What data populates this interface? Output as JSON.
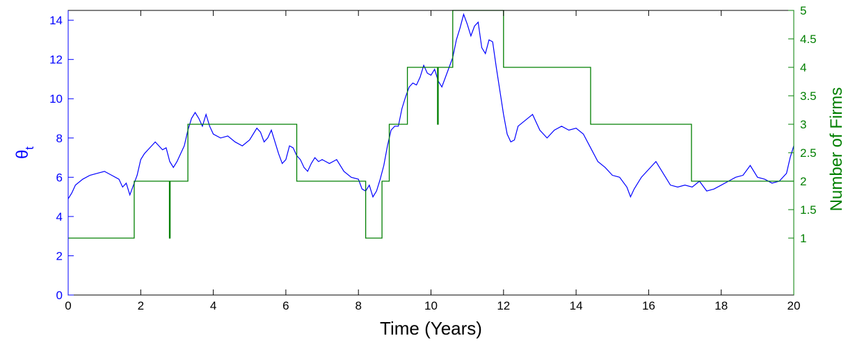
{
  "chart_data": {
    "type": "line",
    "xlabel": "Time (Years)",
    "ylabel_left": {
      "base": "θ",
      "sub": "t"
    },
    "ylabel_right": "Number of Firms",
    "xlim": [
      0,
      20
    ],
    "ylim_left": [
      0,
      14.5
    ],
    "ylim_right": [
      0,
      5.0
    ],
    "xticks": [
      0,
      2,
      4,
      6,
      8,
      10,
      12,
      14,
      16,
      18,
      20
    ],
    "yticks_left": [
      0,
      2,
      4,
      6,
      8,
      10,
      12,
      14
    ],
    "yticks_right": [
      1,
      1.5,
      2,
      2.5,
      3,
      3.5,
      4,
      4.5,
      5
    ],
    "grid": false,
    "colors": {
      "theta": "#0000ff",
      "firms": "#007f00",
      "axes": "#000000"
    },
    "series": [
      {
        "axis": "left",
        "color": "#0000ff",
        "points": [
          [
            0,
            4.9
          ],
          [
            0.1,
            5.2
          ],
          [
            0.2,
            5.6
          ],
          [
            0.4,
            5.9
          ],
          [
            0.6,
            6.1
          ],
          [
            0.8,
            6.2
          ],
          [
            1.0,
            6.3
          ],
          [
            1.2,
            6.1
          ],
          [
            1.4,
            5.9
          ],
          [
            1.5,
            5.5
          ],
          [
            1.6,
            5.7
          ],
          [
            1.7,
            5.1
          ],
          [
            1.8,
            5.6
          ],
          [
            1.9,
            6.1
          ],
          [
            2.0,
            6.9
          ],
          [
            2.1,
            7.2
          ],
          [
            2.2,
            7.4
          ],
          [
            2.3,
            7.6
          ],
          [
            2.4,
            7.8
          ],
          [
            2.5,
            7.6
          ],
          [
            2.6,
            7.4
          ],
          [
            2.7,
            7.5
          ],
          [
            2.8,
            6.8
          ],
          [
            2.9,
            6.5
          ],
          [
            3.0,
            6.8
          ],
          [
            3.1,
            7.2
          ],
          [
            3.2,
            7.6
          ],
          [
            3.3,
            8.4
          ],
          [
            3.4,
            9.0
          ],
          [
            3.5,
            9.3
          ],
          [
            3.6,
            9.0
          ],
          [
            3.7,
            8.6
          ],
          [
            3.8,
            9.2
          ],
          [
            3.9,
            8.6
          ],
          [
            4.0,
            8.2
          ],
          [
            4.2,
            8.0
          ],
          [
            4.4,
            8.1
          ],
          [
            4.6,
            7.8
          ],
          [
            4.8,
            7.6
          ],
          [
            5.0,
            7.9
          ],
          [
            5.2,
            8.5
          ],
          [
            5.3,
            8.3
          ],
          [
            5.4,
            7.8
          ],
          [
            5.5,
            8.0
          ],
          [
            5.6,
            8.4
          ],
          [
            5.7,
            7.8
          ],
          [
            5.8,
            7.2
          ],
          [
            5.9,
            6.7
          ],
          [
            6.0,
            6.9
          ],
          [
            6.1,
            7.6
          ],
          [
            6.2,
            7.5
          ],
          [
            6.3,
            7.1
          ],
          [
            6.4,
            6.9
          ],
          [
            6.5,
            6.5
          ],
          [
            6.6,
            6.3
          ],
          [
            6.7,
            6.7
          ],
          [
            6.8,
            7.0
          ],
          [
            6.9,
            6.8
          ],
          [
            7.0,
            6.9
          ],
          [
            7.2,
            6.7
          ],
          [
            7.4,
            6.9
          ],
          [
            7.6,
            6.3
          ],
          [
            7.8,
            6.0
          ],
          [
            8.0,
            5.9
          ],
          [
            8.1,
            5.4
          ],
          [
            8.2,
            5.3
          ],
          [
            8.3,
            5.6
          ],
          [
            8.4,
            5.0
          ],
          [
            8.5,
            5.3
          ],
          [
            8.6,
            5.9
          ],
          [
            8.7,
            6.6
          ],
          [
            8.8,
            7.6
          ],
          [
            8.9,
            8.4
          ],
          [
            9.0,
            8.6
          ],
          [
            9.1,
            8.6
          ],
          [
            9.2,
            9.5
          ],
          [
            9.3,
            10.1
          ],
          [
            9.4,
            10.6
          ],
          [
            9.5,
            10.8
          ],
          [
            9.6,
            10.7
          ],
          [
            9.7,
            11.1
          ],
          [
            9.8,
            11.7
          ],
          [
            9.9,
            11.3
          ],
          [
            10.0,
            11.2
          ],
          [
            10.1,
            11.5
          ],
          [
            10.2,
            10.9
          ],
          [
            10.3,
            10.6
          ],
          [
            10.4,
            11.1
          ],
          [
            10.5,
            11.6
          ],
          [
            10.6,
            12.1
          ],
          [
            10.7,
            13.0
          ],
          [
            10.8,
            13.6
          ],
          [
            10.9,
            14.3
          ],
          [
            11.0,
            13.8
          ],
          [
            11.1,
            13.2
          ],
          [
            11.2,
            13.7
          ],
          [
            11.3,
            13.9
          ],
          [
            11.4,
            12.6
          ],
          [
            11.5,
            12.3
          ],
          [
            11.6,
            13.0
          ],
          [
            11.7,
            12.9
          ],
          [
            11.8,
            11.6
          ],
          [
            11.9,
            10.4
          ],
          [
            12.0,
            9.2
          ],
          [
            12.1,
            8.2
          ],
          [
            12.2,
            7.8
          ],
          [
            12.3,
            7.9
          ],
          [
            12.4,
            8.6
          ],
          [
            12.6,
            8.9
          ],
          [
            12.8,
            9.2
          ],
          [
            13.0,
            8.4
          ],
          [
            13.2,
            8.0
          ],
          [
            13.4,
            8.4
          ],
          [
            13.6,
            8.6
          ],
          [
            13.8,
            8.4
          ],
          [
            14.0,
            8.5
          ],
          [
            14.2,
            8.2
          ],
          [
            14.4,
            7.5
          ],
          [
            14.6,
            6.8
          ],
          [
            14.8,
            6.5
          ],
          [
            15.0,
            6.1
          ],
          [
            15.2,
            6.0
          ],
          [
            15.4,
            5.5
          ],
          [
            15.5,
            5.0
          ],
          [
            15.6,
            5.4
          ],
          [
            15.8,
            6.0
          ],
          [
            16.0,
            6.4
          ],
          [
            16.2,
            6.8
          ],
          [
            16.4,
            6.2
          ],
          [
            16.6,
            5.6
          ],
          [
            16.8,
            5.5
          ],
          [
            17.0,
            5.6
          ],
          [
            17.2,
            5.5
          ],
          [
            17.4,
            5.8
          ],
          [
            17.6,
            5.3
          ],
          [
            17.8,
            5.4
          ],
          [
            18.0,
            5.6
          ],
          [
            18.2,
            5.8
          ],
          [
            18.4,
            6.0
          ],
          [
            18.6,
            6.1
          ],
          [
            18.8,
            6.6
          ],
          [
            19.0,
            6.0
          ],
          [
            19.2,
            5.9
          ],
          [
            19.4,
            5.7
          ],
          [
            19.6,
            5.8
          ],
          [
            19.8,
            6.2
          ],
          [
            19.9,
            7.0
          ],
          [
            20.0,
            7.6
          ]
        ]
      },
      {
        "axis": "right",
        "color": "#007f00",
        "step": true,
        "points": [
          [
            0,
            1
          ],
          [
            1.82,
            1
          ],
          [
            1.82,
            2
          ],
          [
            2.79,
            2
          ],
          [
            2.79,
            1
          ],
          [
            2.81,
            1
          ],
          [
            2.81,
            2
          ],
          [
            3.3,
            2
          ],
          [
            3.3,
            3
          ],
          [
            6.3,
            3
          ],
          [
            6.3,
            2
          ],
          [
            8.2,
            2
          ],
          [
            8.2,
            1
          ],
          [
            8.65,
            1
          ],
          [
            8.65,
            2
          ],
          [
            8.85,
            2
          ],
          [
            8.85,
            3
          ],
          [
            9.35,
            3
          ],
          [
            9.35,
            4
          ],
          [
            10.18,
            4
          ],
          [
            10.18,
            3
          ],
          [
            10.2,
            3
          ],
          [
            10.2,
            4
          ],
          [
            10.6,
            4
          ],
          [
            10.6,
            5
          ],
          [
            12.0,
            5
          ],
          [
            12.0,
            4
          ],
          [
            14.4,
            4
          ],
          [
            14.4,
            3
          ],
          [
            17.18,
            3
          ],
          [
            17.18,
            2
          ],
          [
            20.0,
            2
          ]
        ]
      }
    ]
  }
}
